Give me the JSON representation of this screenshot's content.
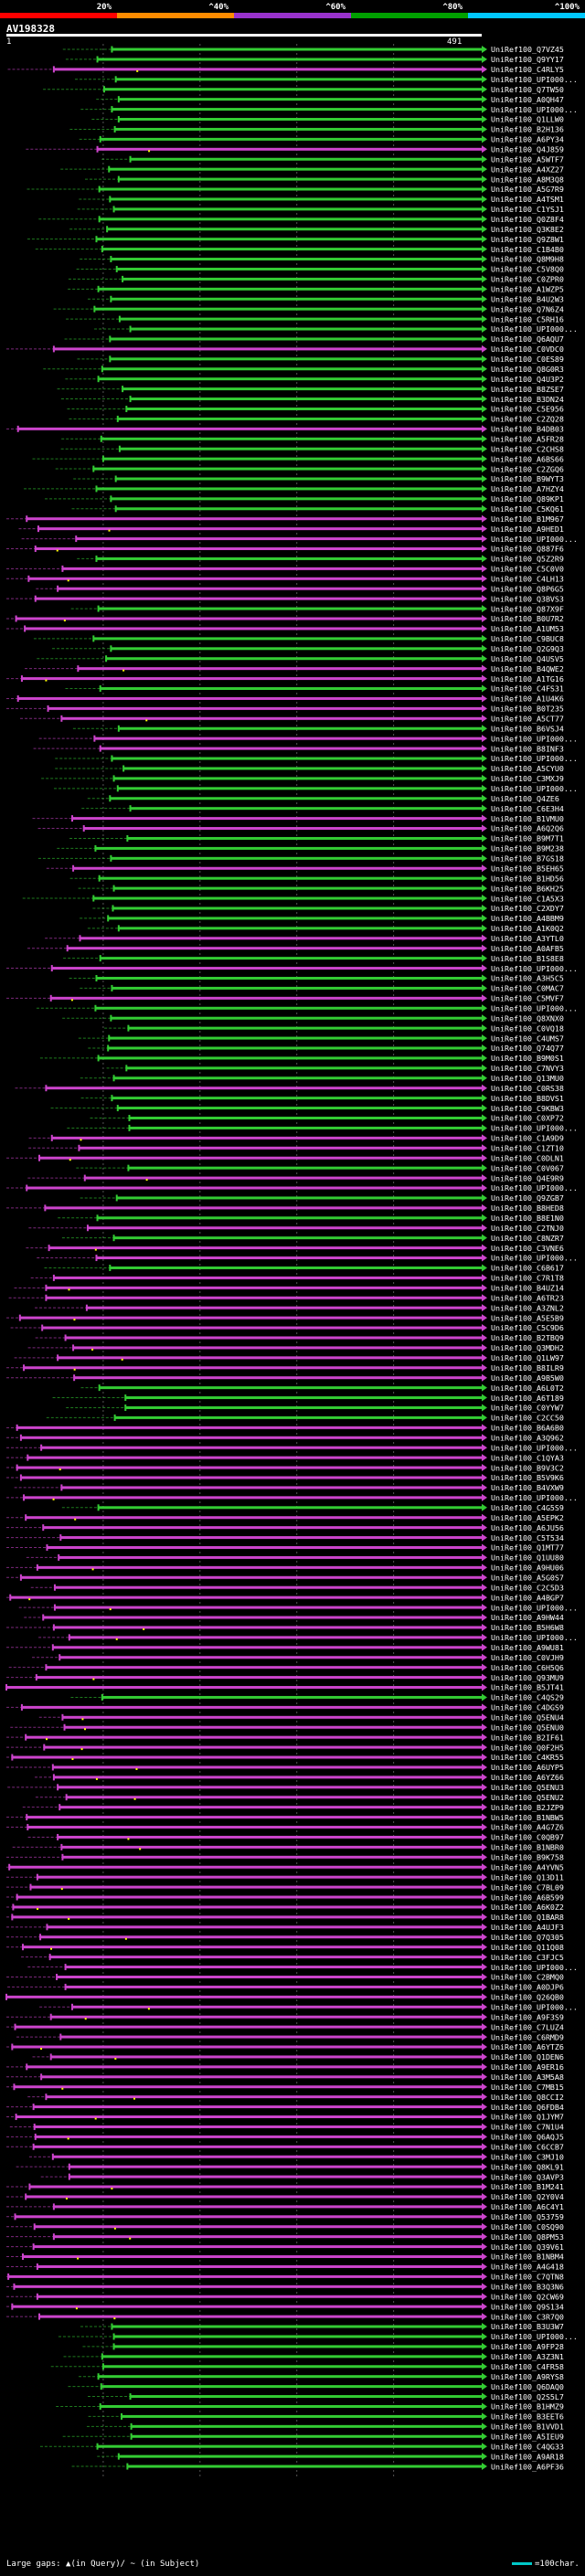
{
  "legend": {
    "ticks": [
      "20%",
      "^40%",
      "^60%",
      "^80%",
      "^100%"
    ],
    "colors": [
      "#ff0000",
      "#ff8c00",
      "#9932cc",
      "#00a000",
      "#00c8ff"
    ]
  },
  "query": {
    "id": "AV198328",
    "start": "1",
    "end": "491"
  },
  "colors": {
    "green_hit": "#33cc33",
    "purple_hit": "#cc44cc",
    "gap_marker": "#ffff00",
    "dashed_rule": "#555555"
  },
  "footer": {
    "gaps_text": "Large gaps: ▲(in Query)/ ~ (in Subject)",
    "scale_text": "=100char."
  },
  "chart_data": {
    "type": "alignment_overview",
    "title": "AV198328",
    "query_length": 491,
    "hits": [
      {
        "id": "UniRef100_Q7VZ45",
        "color": "green"
      },
      {
        "id": "UniRef100_Q9YY17",
        "color": "green"
      },
      {
        "id": "UniRef100_C4RLY5",
        "color": "purple"
      },
      {
        "id": "UniRef100_UPI000...",
        "color": "green"
      },
      {
        "id": "UniRef100_Q7TW50",
        "color": "green"
      },
      {
        "id": "UniRef100_A0QH47",
        "color": "green"
      },
      {
        "id": "UniRef100_UPI000...",
        "color": "green"
      },
      {
        "id": "UniRef100_Q1LLW0",
        "color": "green"
      },
      {
        "id": "UniRef100_B2H136",
        "color": "green"
      },
      {
        "id": "UniRef100_A6PY34",
        "color": "green"
      },
      {
        "id": "UniRef100_Q4J859",
        "color": "purple"
      },
      {
        "id": "UniRef100_A5WTF7",
        "color": "green"
      },
      {
        "id": "UniRef100_A4XZ27",
        "color": "green"
      },
      {
        "id": "UniRef100_A8M3Q8",
        "color": "green"
      },
      {
        "id": "UniRef100_A5G7R9",
        "color": "green"
      },
      {
        "id": "UniRef100_A4TSM1",
        "color": "green"
      },
      {
        "id": "UniRef100_C1YSJ1",
        "color": "green"
      },
      {
        "id": "UniRef100_Q0Z8F4",
        "color": "green"
      },
      {
        "id": "UniRef100_Q3K8E2",
        "color": "green"
      },
      {
        "id": "UniRef100_Q9Z8W1",
        "color": "green"
      },
      {
        "id": "UniRef100_C1B4B0",
        "color": "green"
      },
      {
        "id": "UniRef100_Q8M9H8",
        "color": "green"
      },
      {
        "id": "UniRef100_C5V8Q0",
        "color": "green"
      },
      {
        "id": "UniRef100_C0ZPR0",
        "color": "green"
      },
      {
        "id": "UniRef100_A1WZP5",
        "color": "green"
      },
      {
        "id": "UniRef100_B4U2W3",
        "color": "green"
      },
      {
        "id": "UniRef100_Q7N6Z4",
        "color": "green"
      },
      {
        "id": "UniRef100_C5RH16",
        "color": "green"
      },
      {
        "id": "UniRef100_UPI000...",
        "color": "green"
      },
      {
        "id": "UniRef100_Q6AQU7",
        "color": "green"
      },
      {
        "id": "UniRef100_C0VDC0",
        "color": "purple"
      },
      {
        "id": "UniRef100_C0ES89",
        "color": "green"
      },
      {
        "id": "UniRef100_Q8G0R3",
        "color": "green"
      },
      {
        "id": "UniRef100_Q4U3P2",
        "color": "green"
      },
      {
        "id": "UniRef100_B8ZSE7",
        "color": "green"
      },
      {
        "id": "UniRef100_B3DN24",
        "color": "green"
      },
      {
        "id": "UniRef100_C5E956",
        "color": "green"
      },
      {
        "id": "UniRef100_C2ZQ28",
        "color": "green"
      },
      {
        "id": "UniRef100_B4DB03",
        "color": "purple"
      },
      {
        "id": "UniRef100_A5FR28",
        "color": "green"
      },
      {
        "id": "UniRef100_C2CHS8",
        "color": "green"
      },
      {
        "id": "UniRef100_A6BS66",
        "color": "green"
      },
      {
        "id": "UniRef100_C2ZGQ6",
        "color": "green"
      },
      {
        "id": "UniRef100_B9WYT3",
        "color": "green"
      },
      {
        "id": "UniRef100_A7HZY4",
        "color": "green"
      },
      {
        "id": "UniRef100_Q89KP1",
        "color": "green"
      },
      {
        "id": "UniRef100_C5KQ61",
        "color": "green"
      },
      {
        "id": "UniRef100_B1M967",
        "color": "purple"
      },
      {
        "id": "UniRef100_A9HED1",
        "color": "purple"
      },
      {
        "id": "UniRef100_UPI000...",
        "color": "purple"
      },
      {
        "id": "UniRef100_Q887F6",
        "color": "purple"
      },
      {
        "id": "UniRef100_Q5Z2R9",
        "color": "green"
      },
      {
        "id": "UniRef100_C5C0V0",
        "color": "purple"
      },
      {
        "id": "UniRef100_C4LH13",
        "color": "purple"
      },
      {
        "id": "UniRef100_Q8P6G5",
        "color": "purple"
      },
      {
        "id": "UniRef100_Q3BVS3",
        "color": "purple"
      },
      {
        "id": "UniRef100_Q87X9F",
        "color": "green"
      },
      {
        "id": "UniRef100_B0U7R2",
        "color": "purple"
      },
      {
        "id": "UniRef100_A1UM53",
        "color": "purple"
      },
      {
        "id": "UniRef100_C9BUC8",
        "color": "green"
      },
      {
        "id": "UniRef100_Q2G9Q3",
        "color": "green"
      },
      {
        "id": "UniRef100_Q4USV5",
        "color": "green"
      },
      {
        "id": "UniRef100_B4QWE2",
        "color": "purple"
      },
      {
        "id": "UniRef100_A1TG16",
        "color": "purple"
      },
      {
        "id": "UniRef100_C4FS31",
        "color": "green"
      },
      {
        "id": "UniRef100_A1U4K6",
        "color": "purple"
      },
      {
        "id": "UniRef100_B0T235",
        "color": "purple"
      },
      {
        "id": "UniRef100_A5CT77",
        "color": "purple"
      },
      {
        "id": "UniRef100_B6VSJ4",
        "color": "green"
      },
      {
        "id": "UniRef100_UPI000...",
        "color": "purple"
      },
      {
        "id": "UniRef100_B8INF3",
        "color": "purple"
      },
      {
        "id": "UniRef100_UPI000...",
        "color": "green"
      },
      {
        "id": "UniRef100_A5CYU0",
        "color": "green"
      },
      {
        "id": "UniRef100_C3MXJ9",
        "color": "green"
      },
      {
        "id": "UniRef100_UPI000...",
        "color": "green"
      },
      {
        "id": "UniRef100_Q4ZE6",
        "color": "green"
      },
      {
        "id": "UniRef100_C6E3H4",
        "color": "green"
      },
      {
        "id": "UniRef100_B1VMU0",
        "color": "purple"
      },
      {
        "id": "UniRef100_A6Q2Q6",
        "color": "purple"
      },
      {
        "id": "UniRef100_B9M7T1",
        "color": "green"
      },
      {
        "id": "UniRef100_B9M238",
        "color": "green"
      },
      {
        "id": "UniRef100_B7GS18",
        "color": "green"
      },
      {
        "id": "UniRef100_B5EH65",
        "color": "purple"
      },
      {
        "id": "UniRef100_B1HD56",
        "color": "green"
      },
      {
        "id": "UniRef100_B6KH25",
        "color": "green"
      },
      {
        "id": "UniRef100_C1A5X3",
        "color": "green"
      },
      {
        "id": "UniRef100_C2XDY7",
        "color": "green"
      },
      {
        "id": "UniRef100_A4BBM9",
        "color": "green"
      },
      {
        "id": "UniRef100_A1K0Q2",
        "color": "green"
      },
      {
        "id": "UniRef100_A3YTL0",
        "color": "purple"
      },
      {
        "id": "UniRef100_A0AFB5",
        "color": "purple"
      },
      {
        "id": "UniRef100_B1S8E8",
        "color": "green"
      },
      {
        "id": "UniRef100_UPI000...",
        "color": "purple"
      },
      {
        "id": "UniRef100_A3H5C5",
        "color": "green"
      },
      {
        "id": "UniRef100_C0MAC7",
        "color": "green"
      },
      {
        "id": "UniRef100_C5MVF7",
        "color": "purple"
      },
      {
        "id": "UniRef100_UPI000...",
        "color": "green"
      },
      {
        "id": "UniRef100_Q8XNX0",
        "color": "green"
      },
      {
        "id": "UniRef100_C0VQ18",
        "color": "green"
      },
      {
        "id": "UniRef100_C4UMS7",
        "color": "green"
      },
      {
        "id": "UniRef100_Q74Q77",
        "color": "green"
      },
      {
        "id": "UniRef100_B9M0S1",
        "color": "green"
      },
      {
        "id": "UniRef100_C7NVY3",
        "color": "green"
      },
      {
        "id": "UniRef100_Q13MU0",
        "color": "green"
      },
      {
        "id": "UniRef100_C0RS38",
        "color": "purple"
      },
      {
        "id": "UniRef100_B8DVS1",
        "color": "green"
      },
      {
        "id": "UniRef100_C9KBW3",
        "color": "green"
      },
      {
        "id": "UniRef100_C0XP72",
        "color": "green"
      },
      {
        "id": "UniRef100_UPI000...",
        "color": "green"
      },
      {
        "id": "UniRef100_C1A9D9",
        "color": "purple"
      },
      {
        "id": "UniRef100_C1ZT10",
        "color": "purple"
      },
      {
        "id": "UniRef100_C0DLN1",
        "color": "purple"
      },
      {
        "id": "UniRef100_C0V067",
        "color": "green"
      },
      {
        "id": "UniRef100_Q4E9R9",
        "color": "purple"
      },
      {
        "id": "UniRef100_UPI000...",
        "color": "purple"
      },
      {
        "id": "UniRef100_Q9ZGB7",
        "color": "green"
      },
      {
        "id": "UniRef100_B8HED8",
        "color": "purple"
      },
      {
        "id": "UniRef100_B8E1N0",
        "color": "green"
      },
      {
        "id": "UniRef100_C2TNJ0",
        "color": "purple"
      },
      {
        "id": "UniRef100_C8NZR7",
        "color": "green"
      },
      {
        "id": "UniRef100_C3VNE6",
        "color": "purple"
      },
      {
        "id": "UniRef100_UPI000...",
        "color": "purple"
      },
      {
        "id": "UniRef100_C6B617",
        "color": "green"
      },
      {
        "id": "UniRef100_C7R1T8",
        "color": "purple"
      },
      {
        "id": "UniRef100_B4UZ14",
        "color": "purple"
      },
      {
        "id": "UniRef100_A6TR23",
        "color": "purple"
      },
      {
        "id": "UniRef100_A3ZNL2",
        "color": "purple"
      },
      {
        "id": "UniRef100_A5E5B9",
        "color": "purple"
      },
      {
        "id": "UniRef100_C5C9D6",
        "color": "purple"
      },
      {
        "id": "UniRef100_B2TBQ9",
        "color": "purple"
      },
      {
        "id": "UniRef100_Q3MDH2",
        "color": "purple"
      },
      {
        "id": "UniRef100_Q1LW97",
        "color": "purple"
      },
      {
        "id": "UniRef100_B8ILR9",
        "color": "purple"
      },
      {
        "id": "UniRef100_A9B5W0",
        "color": "purple"
      },
      {
        "id": "UniRef100_A6L0T2",
        "color": "green"
      },
      {
        "id": "UniRef100_A6T189",
        "color": "green"
      },
      {
        "id": "UniRef100_C0YYW7",
        "color": "green"
      },
      {
        "id": "UniRef100_C2CC50",
        "color": "green"
      },
      {
        "id": "UniRef100_B6A6B0",
        "color": "purple"
      },
      {
        "id": "UniRef100_A3Q962",
        "color": "purple"
      },
      {
        "id": "UniRef100_UPI000...",
        "color": "purple"
      },
      {
        "id": "UniRef100_C1QYA3",
        "color": "purple"
      },
      {
        "id": "UniRef100_B9V3C2",
        "color": "purple"
      },
      {
        "id": "UniRef100_B5V9K6",
        "color": "purple"
      },
      {
        "id": "UniRef100_B4VXW9",
        "color": "purple"
      },
      {
        "id": "UniRef100_UPI000...",
        "color": "purple"
      },
      {
        "id": "UniRef100_C4G5S9",
        "color": "green"
      },
      {
        "id": "UniRef100_A5EPK2",
        "color": "purple"
      },
      {
        "id": "UniRef100_A6JU56",
        "color": "purple"
      },
      {
        "id": "UniRef100_C5T534",
        "color": "purple"
      },
      {
        "id": "UniRef100_Q1MT77",
        "color": "purple"
      },
      {
        "id": "UniRef100_Q1UU80",
        "color": "purple"
      },
      {
        "id": "UniRef100_A9HU06",
        "color": "purple"
      },
      {
        "id": "UniRef100_A5G0S7",
        "color": "purple"
      },
      {
        "id": "UniRef100_C2C5D3",
        "color": "purple"
      },
      {
        "id": "UniRef100_A4BGP7",
        "color": "purple"
      },
      {
        "id": "UniRef100_UPI000...",
        "color": "purple"
      },
      {
        "id": "UniRef100_A9HW44",
        "color": "purple"
      },
      {
        "id": "UniRef100_B5H6W8",
        "color": "purple"
      },
      {
        "id": "UniRef100_UPI000...",
        "color": "purple"
      },
      {
        "id": "UniRef100_A9WU81",
        "color": "purple"
      },
      {
        "id": "UniRef100_C0VJH9",
        "color": "purple"
      },
      {
        "id": "UniRef100_C6H5Q6",
        "color": "purple"
      },
      {
        "id": "UniRef100_Q93MU9",
        "color": "purple"
      },
      {
        "id": "UniRef100_B5JT41",
        "color": "purple"
      },
      {
        "id": "UniRef100_C4QS29",
        "color": "green"
      },
      {
        "id": "UniRef100_C4DGS9",
        "color": "purple"
      },
      {
        "id": "UniRef100_Q5ENU4",
        "color": "purple"
      },
      {
        "id": "UniRef100_Q5ENU0",
        "color": "purple"
      },
      {
        "id": "UniRef100_B2IF61",
        "color": "purple"
      },
      {
        "id": "UniRef100_Q0F2H5",
        "color": "purple"
      },
      {
        "id": "UniRef100_C4KR55",
        "color": "purple"
      },
      {
        "id": "UniRef100_A6UYP5",
        "color": "purple"
      },
      {
        "id": "UniRef100_A6YZ66",
        "color": "purple"
      },
      {
        "id": "UniRef100_Q5ENU3",
        "color": "purple"
      },
      {
        "id": "UniRef100_Q5ENU2",
        "color": "purple"
      },
      {
        "id": "UniRef100_B2JZP9",
        "color": "purple"
      },
      {
        "id": "UniRef100_B1NBW5",
        "color": "purple"
      },
      {
        "id": "UniRef100_A4G7Z6",
        "color": "purple"
      },
      {
        "id": "UniRef100_C0QB97",
        "color": "purple"
      },
      {
        "id": "UniRef100_B1NBR0",
        "color": "purple"
      },
      {
        "id": "UniRef100_B9K758",
        "color": "purple"
      },
      {
        "id": "UniRef100_A4YVN5",
        "color": "purple"
      },
      {
        "id": "UniRef100_Q13D11",
        "color": "purple"
      },
      {
        "id": "UniRef100_C7BL09",
        "color": "purple"
      },
      {
        "id": "UniRef100_A6B599",
        "color": "purple"
      },
      {
        "id": "UniRef100_A6K0Z2",
        "color": "purple"
      },
      {
        "id": "UniRef100_Q1BAR8",
        "color": "purple"
      },
      {
        "id": "UniRef100_A4UJF3",
        "color": "purple"
      },
      {
        "id": "UniRef100_Q7Q305",
        "color": "purple"
      },
      {
        "id": "UniRef100_Q11Q08",
        "color": "purple"
      },
      {
        "id": "UniRef100_C3FJC5",
        "color": "purple"
      },
      {
        "id": "UniRef100_UPI000...",
        "color": "purple"
      },
      {
        "id": "UniRef100_C2BMQ0",
        "color": "purple"
      },
      {
        "id": "UniRef100_A0DJP6",
        "color": "purple"
      },
      {
        "id": "UniRef100_Q26QB0",
        "color": "purple"
      },
      {
        "id": "UniRef100_UPI000...",
        "color": "purple"
      },
      {
        "id": "UniRef100_A9F3S9",
        "color": "purple"
      },
      {
        "id": "UniRef100_C7LUZ4",
        "color": "purple"
      },
      {
        "id": "UniRef100_C6RMD9",
        "color": "purple"
      },
      {
        "id": "UniRef100_A6YTZ6",
        "color": "purple"
      },
      {
        "id": "UniRef100_Q1DEN6",
        "color": "purple"
      },
      {
        "id": "UniRef100_A9ER16",
        "color": "purple"
      },
      {
        "id": "UniRef100_A3M5A8",
        "color": "purple"
      },
      {
        "id": "UniRef100_C7MB15",
        "color": "purple"
      },
      {
        "id": "UniRef100_Q8CCI2",
        "color": "purple"
      },
      {
        "id": "UniRef100_Q6FDB4",
        "color": "purple"
      },
      {
        "id": "UniRef100_Q1JYM7",
        "color": "purple"
      },
      {
        "id": "UniRef100_C7N1U4",
        "color": "purple"
      },
      {
        "id": "UniRef100_Q6AQJ5",
        "color": "purple"
      },
      {
        "id": "UniRef100_C6CCB7",
        "color": "purple"
      },
      {
        "id": "UniRef100_C3MJ10",
        "color": "purple"
      },
      {
        "id": "UniRef100_Q8KL91",
        "color": "purple"
      },
      {
        "id": "UniRef100_Q3AVP3",
        "color": "purple"
      },
      {
        "id": "UniRef100_B1M241",
        "color": "purple"
      },
      {
        "id": "UniRef100_Q2Y0V4",
        "color": "purple"
      },
      {
        "id": "UniRef100_A6C4Y1",
        "color": "purple"
      },
      {
        "id": "UniRef100_Q53759",
        "color": "purple"
      },
      {
        "id": "UniRef100_C0SQ90",
        "color": "purple"
      },
      {
        "id": "UniRef100_Q8PM53",
        "color": "purple"
      },
      {
        "id": "UniRef100_Q39V61",
        "color": "purple"
      },
      {
        "id": "UniRef100_B1NBM4",
        "color": "purple"
      },
      {
        "id": "UniRef100_A4G418",
        "color": "purple"
      },
      {
        "id": "UniRef100_C7QTN8",
        "color": "purple"
      },
      {
        "id": "UniRef100_B3Q3N6",
        "color": "purple"
      },
      {
        "id": "UniRef100_Q2CW69",
        "color": "purple"
      },
      {
        "id": "UniRef100_Q9S134",
        "color": "purple"
      },
      {
        "id": "UniRef100_C3R7Q0",
        "color": "purple"
      },
      {
        "id": "UniRef100_B3U3W7",
        "color": "green"
      },
      {
        "id": "UniRef100_UPI000...",
        "color": "green"
      },
      {
        "id": "UniRef100_A9FP28",
        "color": "green"
      },
      {
        "id": "UniRef100_A3Z3N1",
        "color": "green"
      },
      {
        "id": "UniRef100_C4FR58",
        "color": "green"
      },
      {
        "id": "UniRef100_A9RYS8",
        "color": "green"
      },
      {
        "id": "UniRef100_Q6DAQ0",
        "color": "green"
      },
      {
        "id": "UniRef100_Q2S5L7",
        "color": "green"
      },
      {
        "id": "UniRef100_B1HMZ9",
        "color": "green"
      },
      {
        "id": "UniRef100_B3EET6",
        "color": "green"
      },
      {
        "id": "UniRef100_B1VVD1",
        "color": "green"
      },
      {
        "id": "UniRef100_A5IEU9",
        "color": "green"
      },
      {
        "id": "UniRef100_C4QG33",
        "color": "green"
      },
      {
        "id": "UniRef100_A9AR18",
        "color": "green"
      },
      {
        "id": "UniRef100_A6PF36",
        "color": "green"
      }
    ]
  }
}
